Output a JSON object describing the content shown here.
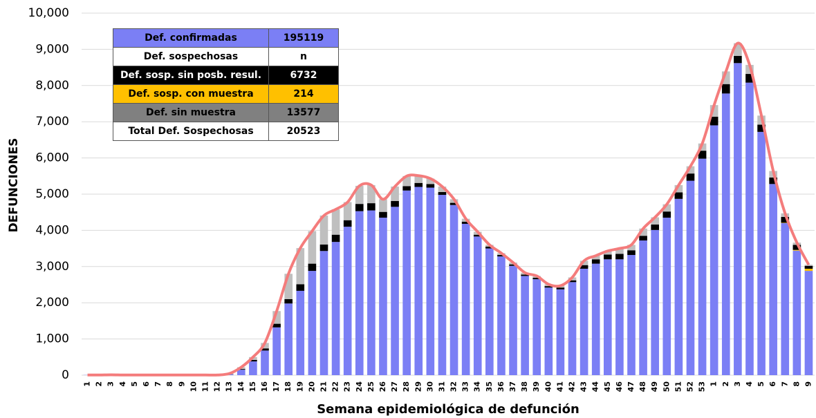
{
  "chart_data": {
    "type": "stacked-bar",
    "y_label": "DEFUNCIONES",
    "x_label": "Semana epidemiológica de defunción",
    "categories": [
      "1",
      "2",
      "3",
      "4",
      "5",
      "6",
      "7",
      "8",
      "9",
      "10",
      "11",
      "12",
      "13",
      "14",
      "15",
      "16",
      "17",
      "18",
      "19",
      "20",
      "21",
      "22",
      "23",
      "24",
      "25",
      "26",
      "27",
      "28",
      "29",
      "30",
      "31",
      "32",
      "33",
      "34",
      "35",
      "36",
      "37",
      "38",
      "39",
      "40",
      "41",
      "42",
      "43",
      "44",
      "45",
      "46",
      "47",
      "48",
      "49",
      "50",
      "51",
      "52",
      "53",
      "1",
      "2",
      "3",
      "4",
      "5",
      "6",
      "7",
      "8",
      "9"
    ],
    "series": [
      {
        "color": "#7b7ff5",
        "values": [
          5,
          5,
          10,
          5,
          5,
          5,
          5,
          5,
          5,
          5,
          5,
          5,
          20,
          150,
          380,
          680,
          1320,
          1980,
          2330,
          2880,
          3430,
          3680,
          4100,
          4530,
          4550,
          4350,
          4650,
          5100,
          5200,
          5180,
          4980,
          4700,
          4180,
          3830,
          3500,
          3280,
          3020,
          2740,
          2650,
          2420,
          2370,
          2570,
          2940,
          3080,
          3200,
          3200,
          3320,
          3720,
          4010,
          4350,
          4870,
          5370,
          5980,
          6900,
          7780,
          8620,
          8080,
          6720,
          5280,
          4200,
          3440,
          2880
        ]
      },
      {
        "color": "#ffc000",
        "values": [
          0,
          0,
          0,
          0,
          0,
          0,
          0,
          0,
          0,
          0,
          0,
          0,
          0,
          0,
          0,
          0,
          0,
          0,
          0,
          0,
          0,
          0,
          0,
          0,
          0,
          0,
          0,
          0,
          0,
          0,
          0,
          0,
          0,
          0,
          0,
          0,
          0,
          0,
          0,
          0,
          0,
          0,
          0,
          0,
          0,
          0,
          0,
          0,
          0,
          0,
          0,
          0,
          0,
          0,
          0,
          0,
          0,
          0,
          0,
          10,
          20,
          60
        ]
      },
      {
        "color": "#000000",
        "values": [
          0,
          0,
          0,
          0,
          0,
          0,
          0,
          0,
          0,
          0,
          0,
          0,
          5,
          20,
          40,
          60,
          100,
          120,
          180,
          200,
          180,
          200,
          180,
          200,
          200,
          160,
          160,
          120,
          110,
          100,
          80,
          60,
          60,
          50,
          50,
          40,
          40,
          40,
          40,
          40,
          50,
          50,
          100,
          120,
          130,
          150,
          130,
          130,
          150,
          170,
          180,
          200,
          220,
          240,
          260,
          200,
          240,
          200,
          180,
          160,
          140,
          80
        ]
      },
      {
        "color": "#bfbfbf",
        "values": [
          0,
          0,
          0,
          0,
          0,
          0,
          0,
          0,
          0,
          0,
          0,
          0,
          20,
          50,
          80,
          150,
          350,
          700,
          1000,
          900,
          800,
          700,
          500,
          500,
          500,
          350,
          400,
          280,
          200,
          150,
          150,
          100,
          80,
          80,
          50,
          50,
          50,
          50,
          50,
          50,
          50,
          80,
          120,
          100,
          100,
          150,
          150,
          200,
          200,
          200,
          200,
          200,
          200,
          320,
          350,
          350,
          250,
          250,
          180,
          100,
          60,
          30
        ]
      }
    ],
    "line_color": "#f47c7c",
    "ylim": [
      0,
      10000
    ],
    "yticks": [
      {
        "value": 0,
        "label": "0"
      },
      {
        "value": 1000,
        "label": "1,000"
      },
      {
        "value": 2000,
        "label": "2,000"
      },
      {
        "value": 3000,
        "label": "3,000"
      },
      {
        "value": 4000,
        "label": "4,000"
      },
      {
        "value": 5000,
        "label": "5,000"
      },
      {
        "value": 6000,
        "label": "6,000"
      },
      {
        "value": 7000,
        "label": "7,000"
      },
      {
        "value": 8000,
        "label": "8,000"
      },
      {
        "value": 9000,
        "label": "9,000"
      },
      {
        "value": 10000,
        "label": "10,000"
      }
    ],
    "grid": true,
    "table": [
      {
        "label": "Def. confirmadas",
        "value": 195119,
        "bg": "#7b7ff5",
        "fg": "#000000"
      },
      {
        "label": "Def. sospechosas",
        "value": "n",
        "bg": "#ffffff",
        "fg": "#000000"
      },
      {
        "label": "Def. sosp. sin posb. resul.",
        "value": 6732,
        "bg": "#000000",
        "fg": "#ffffff"
      },
      {
        "label": "Def. sosp. con  muestra",
        "value": 214,
        "bg": "#ffc000",
        "fg": "#000000"
      },
      {
        "label": "Def. sin muestra",
        "value": 13577,
        "bg": "#808080",
        "fg": "#000000"
      },
      {
        "label": "Total Def. Sospechosas",
        "value": 20523,
        "bg": "#ffffff",
        "fg": "#000000"
      }
    ]
  }
}
